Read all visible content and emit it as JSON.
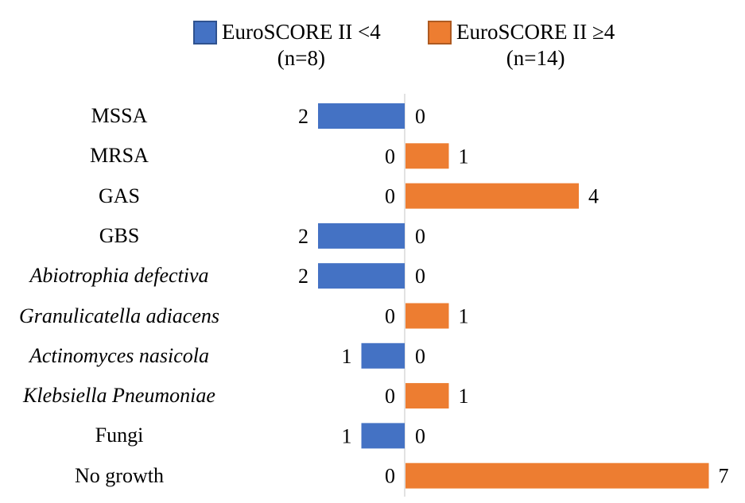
{
  "chart_data": {
    "type": "bar",
    "orientation": "horizontal-diverging",
    "title": "",
    "categories": [
      {
        "label": "MSSA",
        "italic": false
      },
      {
        "label": "MRSA",
        "italic": false
      },
      {
        "label": "GAS",
        "italic": false
      },
      {
        "label": "GBS",
        "italic": false
      },
      {
        "label": "Abiotrophia defectiva",
        "italic": true
      },
      {
        "label": "Granulicatella adiacens",
        "italic": true
      },
      {
        "label": "Actinomyces nasicola",
        "italic": true
      },
      {
        "label": "Klebsiella Pneumoniae",
        "italic": true
      },
      {
        "label": "Fungi",
        "italic": false
      },
      {
        "label": "No growth",
        "italic": false
      }
    ],
    "series": [
      {
        "name": "EuroSCORE II <4",
        "subtitle": "(n=8)",
        "color": "#4472c4",
        "direction": "left",
        "values": [
          2,
          0,
          0,
          2,
          2,
          0,
          1,
          0,
          1,
          0
        ]
      },
      {
        "name": "EuroSCORE II ≥4",
        "subtitle": "(n=14)",
        "color": "#ed7d31",
        "direction": "right",
        "values": [
          0,
          1,
          4,
          0,
          0,
          1,
          0,
          1,
          0,
          7
        ]
      }
    ],
    "legend_position": "top",
    "grid": false,
    "xlim": [
      -7,
      7
    ]
  }
}
